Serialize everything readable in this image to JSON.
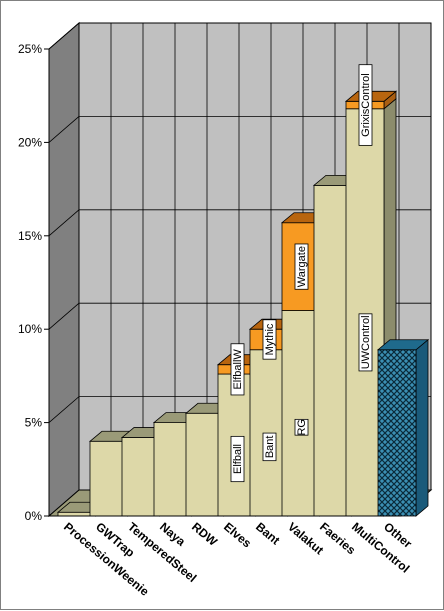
{
  "chart_data": {
    "type": "bar",
    "stacked": true,
    "three_d": true,
    "categories": [
      "ProcessionWeenie",
      "GWTrap",
      "TemperedSteel",
      "Naya",
      "RDW",
      "Elves",
      "Bant",
      "Valakut",
      "Faeries",
      "MultiControl",
      "Other"
    ],
    "y_ticks": [
      "0%",
      "5%",
      "10%",
      "15%",
      "20%",
      "25%"
    ],
    "ylim": [
      0,
      25
    ],
    "grid": true,
    "series": [
      {
        "values": [
          0.2,
          4.0,
          4.2,
          5.0,
          5.5,
          7.6,
          8.9,
          11.0,
          17.7,
          21.8,
          8.9
        ]
      },
      {
        "values": [
          0,
          0,
          0,
          0,
          0,
          0.5,
          1.1,
          4.7,
          0,
          0.4,
          0
        ]
      }
    ],
    "segment_labels": [
      {
        "category": "Elves",
        "series": 0,
        "text": "Elfball"
      },
      {
        "category": "Elves",
        "series": 1,
        "text": "ElfballW"
      },
      {
        "category": "Bant",
        "series": 0,
        "text": "Bant"
      },
      {
        "category": "Bant",
        "series": 1,
        "text": "Mythic"
      },
      {
        "category": "Valakut",
        "series": 0,
        "text": "RG"
      },
      {
        "category": "Valakut",
        "series": 1,
        "text": "Wargate"
      },
      {
        "category": "MultiControl",
        "series": 0,
        "text": "UWControl"
      },
      {
        "category": "MultiControl",
        "series": 1,
        "text": "GrixisControl"
      }
    ],
    "colors": {
      "base_front": "#ddd8a8",
      "base_top": "#9a9a78",
      "base_side": "#8c8c6c",
      "stack_front": "#f79a22",
      "stack_top": "#b8650f",
      "stack_side": "#a95e12",
      "other_front": "#3b8fb3",
      "other_top": "#1f6a8c",
      "other_side": "#1a5a7a",
      "wall": "#c0c0c0",
      "side_wall": "#808080",
      "floor": "#9a9a78"
    }
  }
}
